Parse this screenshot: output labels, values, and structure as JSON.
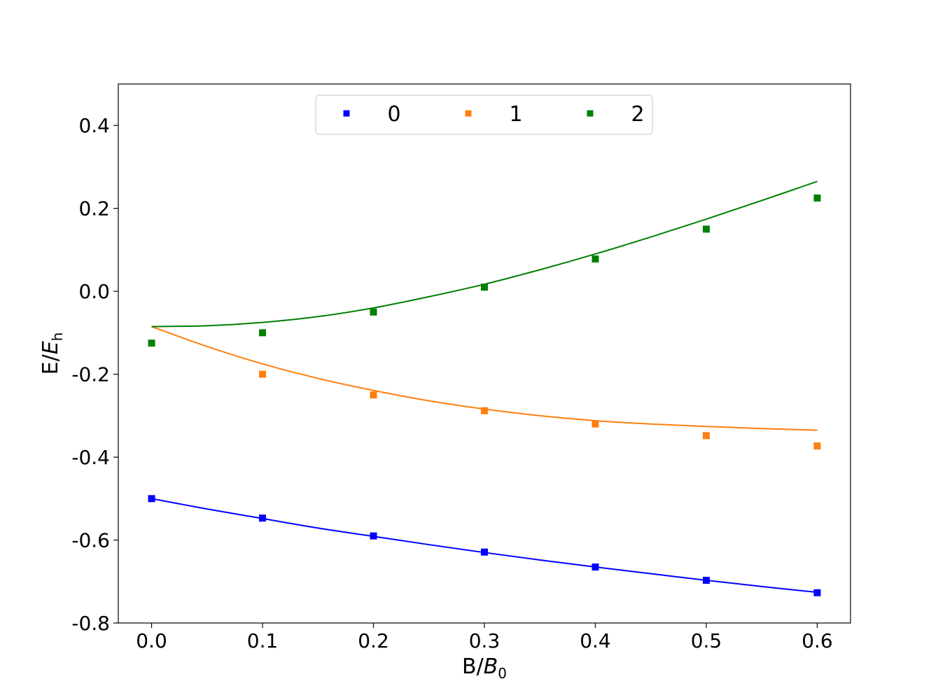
{
  "chart_data": {
    "type": "line",
    "xlabel": {
      "main": "B/",
      "italic": "B",
      "sub": "0"
    },
    "ylabel": {
      "main": "E/",
      "italic": "E",
      "sub": "h"
    },
    "xlim": [
      -0.03,
      0.63
    ],
    "ylim": [
      -0.8,
      0.5
    ],
    "x_ticks": [
      0.0,
      0.1,
      0.2,
      0.3,
      0.4,
      0.5,
      0.6
    ],
    "x_tick_labels": [
      "0.0",
      "0.1",
      "0.2",
      "0.3",
      "0.4",
      "0.5",
      "0.6"
    ],
    "y_ticks": [
      0.4,
      0.2,
      0.0,
      -0.2,
      -0.4,
      -0.6,
      -0.8
    ],
    "y_tick_labels": [
      "0.4",
      "0.2",
      "0.0",
      "-0.2",
      "-0.4",
      "-0.6",
      "-0.8"
    ],
    "grid": false,
    "legend": {
      "placement": "top-center",
      "columns": 3
    },
    "x": [
      0.0,
      0.1,
      0.2,
      0.3,
      0.4,
      0.5,
      0.6
    ],
    "series": [
      {
        "name": "0",
        "color": "#0000ff",
        "marker": "square",
        "points": [
          -0.5,
          -0.547,
          -0.59,
          -0.629,
          -0.665,
          -0.697,
          -0.727
        ],
        "curve_x": [
          0.0,
          0.05,
          0.1,
          0.15,
          0.2,
          0.25,
          0.3,
          0.35,
          0.4,
          0.45,
          0.5,
          0.55,
          0.6
        ],
        "curve_y": [
          -0.5,
          -0.525,
          -0.548,
          -0.571,
          -0.591,
          -0.611,
          -0.63,
          -0.648,
          -0.665,
          -0.681,
          -0.697,
          -0.712,
          -0.726
        ]
      },
      {
        "name": "1",
        "color": "#ff7f0e",
        "marker": "square",
        "points": [
          -0.2,
          -0.25,
          -0.288,
          -0.32,
          -0.348,
          -0.373
        ],
        "points_x": [
          0.1,
          0.2,
          0.3,
          0.4,
          0.5,
          0.6
        ],
        "curve_x": [
          0.0,
          0.05,
          0.1,
          0.15,
          0.2,
          0.25,
          0.3,
          0.35,
          0.4,
          0.45,
          0.5,
          0.55,
          0.6
        ],
        "curve_y": [
          -0.085,
          -0.133,
          -0.175,
          -0.21,
          -0.239,
          -0.264,
          -0.284,
          -0.3,
          -0.312,
          -0.32,
          -0.326,
          -0.331,
          -0.335
        ]
      },
      {
        "name": "2",
        "color": "#008000",
        "marker": "square",
        "points": [
          -0.125,
          -0.1,
          -0.05,
          0.01,
          0.078,
          0.15,
          0.225
        ],
        "curve_x": [
          0.0,
          0.05,
          0.1,
          0.15,
          0.2,
          0.25,
          0.3,
          0.35,
          0.4,
          0.45,
          0.5,
          0.55,
          0.6
        ],
        "curve_y": [
          -0.085,
          -0.083,
          -0.075,
          -0.061,
          -0.04,
          -0.013,
          0.017,
          0.052,
          0.09,
          0.131,
          0.174,
          0.219,
          0.265
        ]
      }
    ]
  }
}
